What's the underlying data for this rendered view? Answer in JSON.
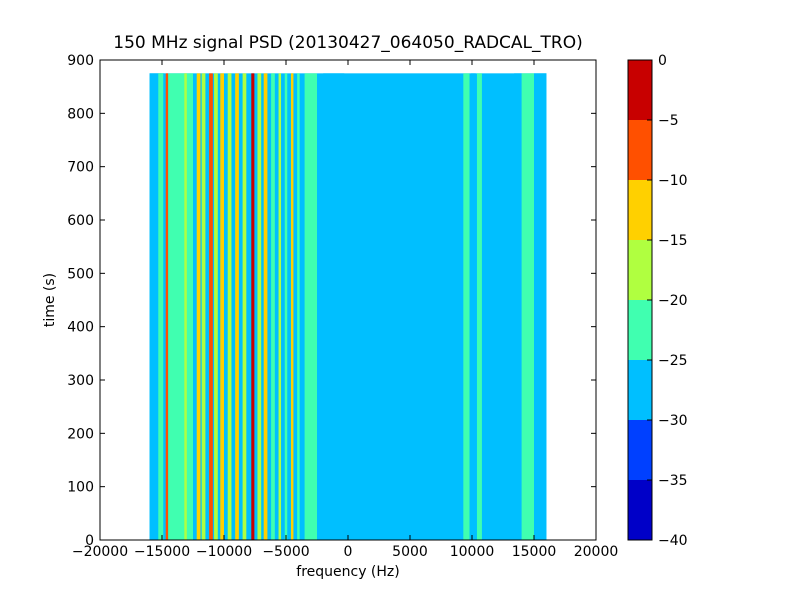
{
  "chart_data": {
    "type": "heatmap",
    "title": "150 MHz signal PSD (20130427_064050_RADCAL_TRO)",
    "xlabel": "frequency (Hz)",
    "ylabel": "time (s)",
    "xlim": [
      -20000,
      20000
    ],
    "ylim": [
      0,
      900
    ],
    "xticks": [
      -20000,
      -15000,
      -10000,
      -5000,
      0,
      5000,
      10000,
      15000,
      20000
    ],
    "xtick_labels": [
      "−20000",
      "−15000",
      "−10000",
      "−5000",
      "0",
      "5000",
      "10000",
      "15000",
      "20000"
    ],
    "yticks": [
      0,
      100,
      200,
      300,
      400,
      500,
      600,
      700,
      800,
      900
    ],
    "ytick_labels": [
      "0",
      "100",
      "200",
      "300",
      "400",
      "500",
      "600",
      "700",
      "800",
      "900"
    ],
    "data_extent": {
      "x": [
        -16000,
        16000
      ],
      "y": [
        0,
        875
      ]
    },
    "colorbar": {
      "range": [
        -40,
        0
      ],
      "levels": [
        -40,
        -35,
        -30,
        -25,
        -20,
        -15,
        -10,
        -5,
        0
      ],
      "tick_labels": [
        "−40",
        "−35",
        "−30",
        "−25",
        "−20",
        "−15",
        "−10",
        "−5",
        "0"
      ],
      "colors": [
        "#0000c8",
        "#0040ff",
        "#00bfff",
        "#40ffb0",
        "#b0ff40",
        "#ffd000",
        "#ff5000",
        "#c80000"
      ]
    },
    "bands": [
      {
        "x": [
          -16000,
          -14800
        ],
        "level": -25
      },
      {
        "x": [
          -15300,
          -14900
        ],
        "level": -20
      },
      {
        "x": [
          -14700,
          -14500
        ],
        "level": -5
      },
      {
        "x": [
          -14500,
          -12500
        ],
        "level": -20
      },
      {
        "x": [
          -13200,
          -13000
        ],
        "level": -15
      },
      {
        "x": [
          -12200,
          -11900
        ],
        "level": -10
      },
      {
        "x": [
          -11800,
          -11500
        ],
        "level": -15
      },
      {
        "x": [
          -11200,
          -10900
        ],
        "level": -5
      },
      {
        "x": [
          -10800,
          -10500
        ],
        "level": -15
      },
      {
        "x": [
          -10300,
          -10000
        ],
        "level": -10
      },
      {
        "x": [
          -9700,
          -9400
        ],
        "level": -15
      },
      {
        "x": [
          -9100,
          -8800
        ],
        "level": -10
      },
      {
        "x": [
          -8500,
          -8200
        ],
        "level": -15
      },
      {
        "x": [
          -7800,
          -7550
        ],
        "level": 0
      },
      {
        "x": [
          -7300,
          -7000
        ],
        "level": -15
      },
      {
        "x": [
          -6800,
          -6500
        ],
        "level": -10
      },
      {
        "x": [
          -6200,
          -5900
        ],
        "level": -20
      },
      {
        "x": [
          -5600,
          -5400
        ],
        "level": -15
      },
      {
        "x": [
          -5100,
          -4900
        ],
        "level": -20
      },
      {
        "x": [
          -4600,
          -4400
        ],
        "level": -10
      },
      {
        "x": [
          -4100,
          -3900
        ],
        "level": -20
      },
      {
        "x": [
          -3500,
          -2500
        ],
        "level": -20
      },
      {
        "x": [
          -2000,
          -300
        ],
        "level": -25
      },
      {
        "x": [
          9300,
          9800
        ],
        "level": -20
      },
      {
        "x": [
          9900,
          10300
        ],
        "level": -25
      },
      {
        "x": [
          10400,
          10800
        ],
        "level": -20
      },
      {
        "x": [
          13400,
          14000
        ],
        "level": -25
      },
      {
        "x": [
          14000,
          15000
        ],
        "level": -20
      },
      {
        "x": [
          15000,
          16000
        ],
        "level": -25
      }
    ]
  }
}
